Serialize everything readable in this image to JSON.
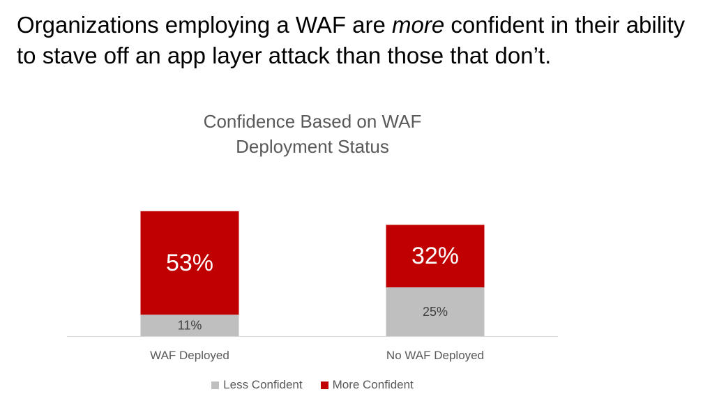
{
  "headline": {
    "before": "Organizations employing a WAF are ",
    "emphasis": "more",
    "after": " confident in their ability to stave off an app layer attack than those that don’t."
  },
  "colors": {
    "less": "#bfbfbf",
    "more": "#c00000",
    "axis": "#d9d9d9",
    "text": "#595959"
  },
  "chart_data": {
    "type": "bar",
    "stacked": true,
    "title": "Confidence Based on WAF Deployment Status",
    "title_lines": [
      "Confidence Based on WAF",
      "Deployment Status"
    ],
    "categories": [
      "WAF Deployed",
      "No WAF Deployed"
    ],
    "series": [
      {
        "name": "Less Confident",
        "values": [
          11,
          25
        ],
        "labels": [
          "11%",
          "25%"
        ]
      },
      {
        "name": "More Confident",
        "values": [
          53,
          32
        ],
        "labels": [
          "53%",
          "32%"
        ]
      }
    ],
    "ylim": [
      0,
      64
    ],
    "legend_position": "bottom",
    "grid": false
  }
}
